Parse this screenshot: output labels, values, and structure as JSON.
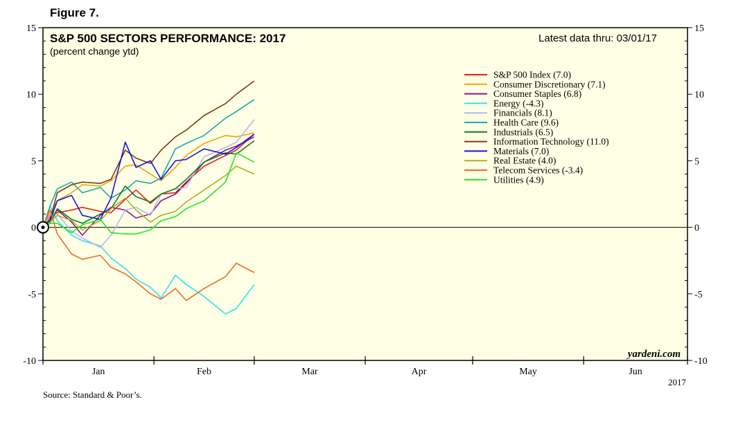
{
  "figure_label": "Figure 7.",
  "source": "Source: Standard & Poor’s.",
  "watermark": "yardeni.com",
  "colors": {
    "background": "#ffffe6",
    "frame": "#000000"
  },
  "chart_data": {
    "type": "line",
    "title": "S&P 500 SECTORS PERFORMANCE: 2017",
    "subtitle": "(percent change ytd)",
    "note": "Latest data thru: 03/01/17",
    "xlabel": "",
    "ylabel": "",
    "x_tick_labels": [
      "Jan",
      "Feb",
      "Mar",
      "Apr",
      "May",
      "Jun"
    ],
    "year_label": "2017",
    "ylim": [
      -10,
      15
    ],
    "y_ticks": [
      -10,
      -5,
      0,
      5,
      10,
      15
    ],
    "x_domain": [
      "2017-01-01",
      "2017-06-30"
    ],
    "grid": false,
    "zero_line": true,
    "legend_position": "top-right",
    "dates": [
      "2017-01-03",
      "2017-01-05",
      "2017-01-09",
      "2017-01-12",
      "2017-01-17",
      "2017-01-20",
      "2017-01-24",
      "2017-01-27",
      "2017-01-31",
      "2017-02-03",
      "2017-02-07",
      "2017-02-10",
      "2017-02-15",
      "2017-02-21",
      "2017-02-24",
      "2017-03-01"
    ],
    "series": [
      {
        "name": "S&P 500 Index (7.0)",
        "color": "#e8191c",
        "values": [
          0.8,
          1.1,
          1.3,
          1.5,
          1.2,
          1.1,
          2.1,
          2.8,
          1.8,
          2.5,
          2.6,
          3.4,
          4.6,
          5.4,
          5.8,
          7.0
        ]
      },
      {
        "name": "Consumer Discretionary (7.1)",
        "color": "#f5a000",
        "values": [
          1.0,
          2.0,
          2.6,
          3.2,
          3.1,
          3.5,
          4.6,
          4.7,
          4.0,
          3.5,
          4.5,
          5.4,
          6.3,
          6.9,
          6.8,
          7.1
        ]
      },
      {
        "name": "Consumer Staples (6.8)",
        "color": "#8b168b",
        "values": [
          0.6,
          1.3,
          0.4,
          -0.6,
          0.9,
          1.5,
          1.3,
          0.7,
          1.0,
          2.0,
          2.5,
          3.3,
          4.9,
          5.8,
          6.1,
          6.8
        ]
      },
      {
        "name": "Energy (-4.3)",
        "color": "#33e0f0",
        "values": [
          1.6,
          0.5,
          -0.6,
          -1.0,
          -1.4,
          -2.3,
          -3.1,
          -3.9,
          -4.5,
          -5.3,
          -3.6,
          -4.3,
          -5.2,
          -6.5,
          -6.1,
          -4.3
        ]
      },
      {
        "name": "Financials (8.1)",
        "color": "#b8b4ee",
        "values": [
          0.9,
          1.0,
          -0.3,
          -0.8,
          -1.5,
          -0.6,
          1.3,
          1.5,
          0.9,
          2.5,
          2.9,
          3.0,
          5.3,
          6.0,
          6.4,
          8.1
        ]
      },
      {
        "name": "Health Care (9.6)",
        "color": "#1ba8a8",
        "values": [
          1.6,
          2.9,
          3.4,
          2.6,
          3.0,
          2.2,
          2.8,
          3.5,
          3.3,
          3.7,
          5.9,
          6.3,
          6.9,
          8.2,
          8.7,
          9.6
        ]
      },
      {
        "name": "Industrials (6.5)",
        "color": "#117a1b",
        "values": [
          0.3,
          1.4,
          0.6,
          0.3,
          1.0,
          1.4,
          3.1,
          2.3,
          1.9,
          2.5,
          2.9,
          3.6,
          4.9,
          5.6,
          5.5,
          6.5
        ]
      },
      {
        "name": "Information Technology (11.0)",
        "color": "#7a3c0f",
        "values": [
          0.6,
          2.6,
          3.2,
          3.4,
          3.3,
          3.6,
          5.8,
          5.2,
          4.8,
          5.8,
          6.8,
          7.3,
          8.4,
          9.3,
          10.0,
          11.0
        ]
      },
      {
        "name": "Materials (7.0)",
        "color": "#1414dc",
        "values": [
          0.5,
          2.0,
          2.4,
          0.9,
          0.6,
          2.2,
          6.4,
          4.5,
          5.0,
          3.6,
          5.0,
          5.1,
          5.9,
          5.5,
          6.0,
          7.0
        ]
      },
      {
        "name": "Real Estate (4.0)",
        "color": "#a8b02a",
        "values": [
          0.4,
          0.9,
          0.5,
          -0.2,
          0.5,
          1.4,
          2.2,
          1.3,
          0.4,
          0.9,
          1.2,
          1.9,
          2.8,
          3.9,
          4.6,
          4.0
        ]
      },
      {
        "name": "Telecom Services (-3.4)",
        "color": "#ea6b28",
        "values": [
          1.3,
          -0.5,
          -2.0,
          -2.4,
          -2.1,
          -3.0,
          -3.5,
          -4.1,
          -5.0,
          -5.4,
          -4.6,
          -5.5,
          -4.6,
          -3.7,
          -2.7,
          -3.4
        ]
      },
      {
        "name": "Utilities (4.9)",
        "color": "#22e622",
        "values": [
          0.3,
          0.3,
          -0.4,
          0.2,
          0.6,
          -0.4,
          -0.5,
          -0.5,
          -0.2,
          0.5,
          0.8,
          1.4,
          2.0,
          3.4,
          5.6,
          4.9
        ]
      }
    ]
  }
}
